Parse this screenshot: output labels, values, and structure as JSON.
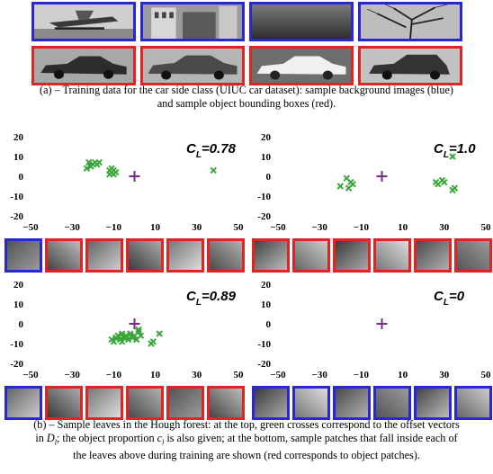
{
  "colors": {
    "blue": "#2727d6",
    "red": "#e02424",
    "marker": "#3aa63a",
    "center": "#7a2a8c"
  },
  "training": {
    "top_row": [
      {
        "icon": "seaplane-photo",
        "border": "blue"
      },
      {
        "icon": "building-photo",
        "border": "blue"
      },
      {
        "icon": "gradient-texture-photo",
        "border": "blue"
      },
      {
        "icon": "tree-branches-photo",
        "border": "blue"
      }
    ],
    "bottom_row": [
      {
        "icon": "sedan-side-photo",
        "border": "red"
      },
      {
        "icon": "car-side-photo",
        "border": "red"
      },
      {
        "icon": "white-car-photo",
        "border": "red"
      },
      {
        "icon": "hatchback-photo",
        "border": "red"
      }
    ],
    "caption_line1": "(a) – Training data for the car side class (UIUC car dataset): sample background images (blue)",
    "caption_line2": "and sample object bounding boxes (red)."
  },
  "chart_data": [
    {
      "type": "scatter",
      "cl_label": "C",
      "cl_sub": "L",
      "cl_value": "=0.78",
      "xlim": [
        -50,
        50
      ],
      "ylim": [
        -20,
        20
      ],
      "xticks": [
        -50,
        -30,
        -10,
        10,
        30,
        50
      ],
      "yticks": [
        20,
        10,
        0,
        -10,
        -20
      ],
      "center": [
        0,
        0
      ],
      "points": [
        [
          -22,
          7
        ],
        [
          -20,
          6
        ],
        [
          -19,
          7
        ],
        [
          -18,
          6
        ],
        [
          -21,
          5
        ],
        [
          -17,
          7
        ],
        [
          -23,
          4
        ],
        [
          -12,
          3
        ],
        [
          -11,
          2
        ],
        [
          -10,
          3
        ],
        [
          -12,
          1
        ],
        [
          -9,
          2
        ],
        [
          -11,
          4
        ],
        [
          -10,
          1
        ],
        [
          38,
          3
        ]
      ],
      "patches": [
        "blue",
        "red",
        "red",
        "red",
        "red",
        "red"
      ]
    },
    {
      "type": "scatter",
      "cl_label": "C",
      "cl_sub": "L",
      "cl_value": "=1.0",
      "xlim": [
        -50,
        50
      ],
      "ylim": [
        -20,
        20
      ],
      "xticks": [
        -50,
        -30,
        -10,
        10,
        30,
        50
      ],
      "yticks": [
        20,
        10,
        0,
        -10,
        -20
      ],
      "center": [
        0,
        0
      ],
      "points": [
        [
          -20,
          -5
        ],
        [
          -17,
          -1
        ],
        [
          -15,
          -3
        ],
        [
          -14,
          -4
        ],
        [
          -16,
          -6
        ],
        [
          26,
          -3
        ],
        [
          27,
          -4
        ],
        [
          29,
          -2
        ],
        [
          30,
          -3
        ],
        [
          34,
          10
        ],
        [
          35,
          -6
        ],
        [
          34,
          -7
        ]
      ],
      "patches": [
        "red",
        "red",
        "red",
        "red",
        "red",
        "red"
      ]
    },
    {
      "type": "scatter",
      "cl_label": "C",
      "cl_sub": "L",
      "cl_value": "=0.89",
      "xlim": [
        -50,
        50
      ],
      "ylim": [
        -20,
        20
      ],
      "xticks": [
        -50,
        -30,
        -10,
        10,
        30,
        50
      ],
      "yticks": [
        20,
        10,
        0,
        -10,
        -20
      ],
      "center": [
        0,
        0
      ],
      "points": [
        [
          -11,
          -8
        ],
        [
          -9,
          -7
        ],
        [
          -8,
          -6
        ],
        [
          -7,
          -8
        ],
        [
          -6,
          -5
        ],
        [
          -5,
          -7
        ],
        [
          -4,
          -6
        ],
        [
          -3,
          -8
        ],
        [
          -2,
          -5
        ],
        [
          -1,
          -7
        ],
        [
          0,
          -6
        ],
        [
          1,
          -8
        ],
        [
          2,
          -4
        ],
        [
          3,
          -6
        ],
        [
          -6,
          -9
        ],
        [
          -10,
          -9
        ],
        [
          8,
          -10
        ],
        [
          9,
          -9
        ],
        [
          12,
          -5
        ],
        [
          2,
          -3
        ]
      ],
      "patches": [
        "blue",
        "red",
        "red",
        "red",
        "red",
        "red"
      ]
    },
    {
      "type": "scatter",
      "cl_label": "C",
      "cl_sub": "L",
      "cl_value": "=0",
      "xlim": [
        -50,
        50
      ],
      "ylim": [
        -20,
        20
      ],
      "xticks": [
        -50,
        -30,
        -10,
        10,
        30,
        50
      ],
      "yticks": [
        20,
        10,
        0,
        -10,
        -20
      ],
      "center": [
        0,
        0
      ],
      "points": [],
      "patches": [
        "blue",
        "blue",
        "blue",
        "blue",
        "blue",
        "blue"
      ]
    }
  ],
  "caption_b": {
    "line1": "(b) – Sample leaves in the Hough forest: at the top, green crosses correspond to the offset vectors",
    "line2_pre": "in ",
    "line2_D": "D",
    "line2_l": "l",
    "line2_mid": "; the object proportion ",
    "line2_c": "c",
    "line2_l2": "l",
    "line2_post": " is also given; at the bottom, sample patches that fall inside each of",
    "line3": "the leaves above during training are shown (red corresponds to object patches)."
  }
}
